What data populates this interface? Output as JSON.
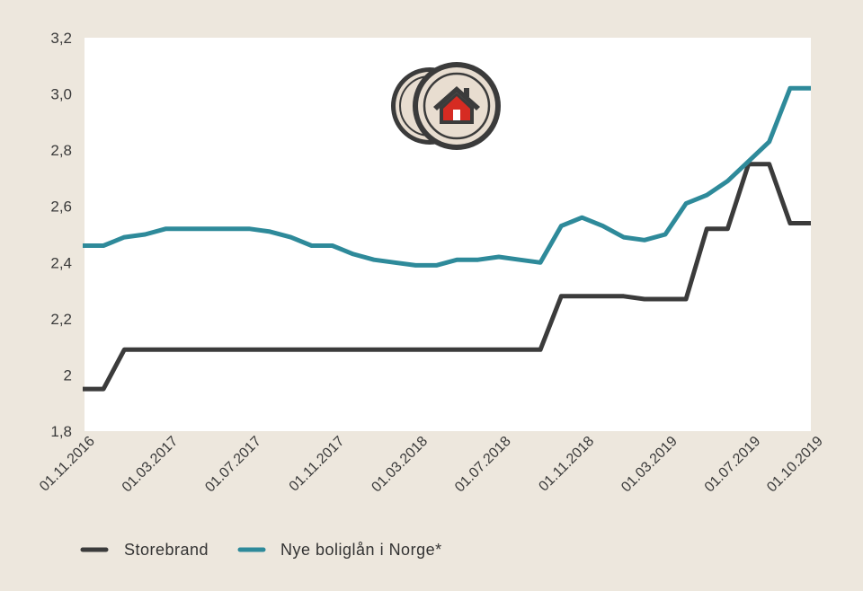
{
  "chart_data": {
    "type": "line",
    "title": "",
    "xlabel": "",
    "ylabel": "",
    "ylim": [
      1.8,
      3.2
    ],
    "yticks": [
      {
        "value": 1.8,
        "label": "1,8"
      },
      {
        "value": 2.0,
        "label": "2"
      },
      {
        "value": 2.2,
        "label": "2,2"
      },
      {
        "value": 2.4,
        "label": "2,4"
      },
      {
        "value": 2.6,
        "label": "2,6"
      },
      {
        "value": 2.8,
        "label": "2,8"
      },
      {
        "value": 3.0,
        "label": "3,0"
      },
      {
        "value": 3.2,
        "label": "3,2"
      }
    ],
    "x": [
      "01.11.2016",
      "01.12.2016",
      "01.01.2017",
      "01.02.2017",
      "01.03.2017",
      "01.04.2017",
      "01.05.2017",
      "01.06.2017",
      "01.07.2017",
      "01.08.2017",
      "01.09.2017",
      "01.10.2017",
      "01.11.2017",
      "01.12.2017",
      "01.01.2018",
      "01.02.2018",
      "01.03.2018",
      "01.04.2018",
      "01.05.2018",
      "01.06.2018",
      "01.07.2018",
      "01.08.2018",
      "01.09.2018",
      "01.10.2018",
      "01.11.2018",
      "01.12.2018",
      "01.01.2019",
      "01.02.2019",
      "01.03.2019",
      "01.04.2019",
      "01.05.2019",
      "01.06.2019",
      "01.07.2019",
      "01.08.2019",
      "01.09.2019",
      "01.10.2019"
    ],
    "xticks": [
      "01.11.2016",
      "01.03.2017",
      "01.07.2017",
      "01.11.2017",
      "01.03.2018",
      "01.07.2018",
      "01.11.2018",
      "01.03.2019",
      "01.07.2019",
      "01.10.2019"
    ],
    "series": [
      {
        "name": "Storebrand",
        "color": "#3b3b3b",
        "values": [
          1.95,
          1.95,
          2.09,
          2.09,
          2.09,
          2.09,
          2.09,
          2.09,
          2.09,
          2.09,
          2.09,
          2.09,
          2.09,
          2.09,
          2.09,
          2.09,
          2.09,
          2.09,
          2.09,
          2.09,
          2.09,
          2.09,
          2.09,
          2.28,
          2.28,
          2.28,
          2.28,
          2.27,
          2.27,
          2.27,
          2.52,
          2.52,
          2.75,
          2.75,
          2.54,
          2.54
        ]
      },
      {
        "name": "Nye boliglån i Norge*",
        "color": "#2e8a9a",
        "values": [
          2.46,
          2.46,
          2.49,
          2.5,
          2.52,
          2.52,
          2.52,
          2.52,
          2.52,
          2.51,
          2.49,
          2.46,
          2.46,
          2.43,
          2.41,
          2.4,
          2.39,
          2.39,
          2.41,
          2.41,
          2.42,
          2.41,
          2.4,
          2.53,
          2.56,
          2.53,
          2.49,
          2.48,
          2.5,
          2.61,
          2.64,
          2.69,
          2.76,
          2.83,
          3.02,
          3.02
        ]
      }
    ],
    "grid": false,
    "legend_position": "bottom-left"
  },
  "icon": "house-coins-icon",
  "colors": {
    "background": "#ede7dd",
    "plot_background": "#ffffff",
    "storebrand": "#3b3b3b",
    "norge": "#2e8a9a",
    "house": "#d62b22"
  }
}
